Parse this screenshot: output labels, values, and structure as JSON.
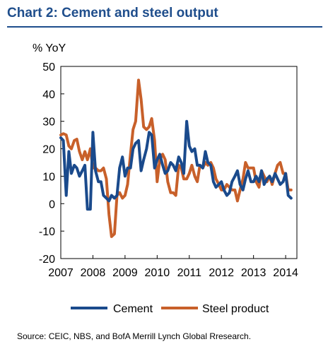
{
  "title": "Chart 2: Cement and steel output",
  "source": "Source: CEIC, NBS, and BofA Merrill Lynch Global Rresearch.",
  "chart_data": {
    "type": "line",
    "ylabel": "% YoY",
    "xlabel": "",
    "xlim": [
      2007.0,
      2014.35
    ],
    "ylim": [
      -20,
      50
    ],
    "yticks": [
      -20,
      -10,
      0,
      10,
      20,
      30,
      40,
      50
    ],
    "xticks": [
      2007,
      2008,
      2009,
      2010,
      2011,
      2012,
      2013,
      2014
    ],
    "grid": false,
    "legend_position": "bottom",
    "colors": {
      "Cement": "#1a4a8c",
      "Steel product": "#c8602a"
    },
    "series": [
      {
        "name": "Cement",
        "x": [
          2007.0,
          2007.08,
          2007.17,
          2007.25,
          2007.33,
          2007.42,
          2007.5,
          2007.58,
          2007.67,
          2007.75,
          2007.83,
          2007.92,
          2008.0,
          2008.08,
          2008.17,
          2008.25,
          2008.33,
          2008.42,
          2008.5,
          2008.58,
          2008.67,
          2008.75,
          2008.83,
          2008.92,
          2009.0,
          2009.08,
          2009.17,
          2009.25,
          2009.33,
          2009.42,
          2009.5,
          2009.58,
          2009.67,
          2009.75,
          2009.83,
          2009.92,
          2010.0,
          2010.08,
          2010.17,
          2010.25,
          2010.33,
          2010.42,
          2010.5,
          2010.58,
          2010.67,
          2010.75,
          2010.83,
          2010.92,
          2011.0,
          2011.08,
          2011.17,
          2011.25,
          2011.33,
          2011.42,
          2011.5,
          2011.58,
          2011.67,
          2011.75,
          2011.83,
          2011.92,
          2012.0,
          2012.08,
          2012.17,
          2012.25,
          2012.33,
          2012.42,
          2012.5,
          2012.58,
          2012.67,
          2012.75,
          2012.83,
          2012.92,
          2013.0,
          2013.08,
          2013.17,
          2013.25,
          2013.33,
          2013.42,
          2013.5,
          2013.58,
          2013.67,
          2013.75,
          2013.83,
          2013.92,
          2014.0,
          2014.08,
          2014.17
        ],
        "values": [
          24,
          23,
          3,
          19,
          11,
          14,
          13,
          10,
          12,
          14,
          -2,
          -2,
          26,
          12,
          8,
          8,
          3,
          2,
          1,
          3,
          2,
          3,
          13,
          17,
          10,
          13,
          13,
          20,
          22,
          23,
          12,
          16,
          20,
          26,
          25,
          13,
          16,
          18,
          14,
          11,
          12,
          15,
          14,
          12,
          17,
          15,
          11,
          30,
          21,
          19,
          20,
          14,
          14,
          13,
          19,
          15,
          14,
          8,
          6,
          7,
          8,
          5,
          3,
          4,
          8,
          10,
          12,
          7,
          5,
          9,
          12,
          8,
          8,
          10,
          8,
          12,
          7,
          9,
          10,
          8,
          11,
          9,
          7,
          8,
          11,
          3,
          2
        ]
      },
      {
        "name": "Steel product",
        "x": [
          2007.0,
          2007.08,
          2007.17,
          2007.25,
          2007.33,
          2007.42,
          2007.5,
          2007.58,
          2007.67,
          2007.75,
          2007.83,
          2007.92,
          2008.0,
          2008.08,
          2008.17,
          2008.25,
          2008.33,
          2008.42,
          2008.5,
          2008.58,
          2008.67,
          2008.75,
          2008.83,
          2008.92,
          2009.0,
          2009.08,
          2009.17,
          2009.25,
          2009.33,
          2009.42,
          2009.5,
          2009.58,
          2009.67,
          2009.75,
          2009.83,
          2009.92,
          2010.0,
          2010.08,
          2010.17,
          2010.25,
          2010.33,
          2010.42,
          2010.5,
          2010.58,
          2010.67,
          2010.75,
          2010.83,
          2010.92,
          2011.0,
          2011.08,
          2011.17,
          2011.25,
          2011.33,
          2011.42,
          2011.5,
          2011.58,
          2011.67,
          2011.75,
          2011.83,
          2011.92,
          2012.0,
          2012.08,
          2012.17,
          2012.25,
          2012.33,
          2012.42,
          2012.5,
          2012.58,
          2012.67,
          2012.75,
          2012.83,
          2012.92,
          2013.0,
          2013.08,
          2013.17,
          2013.25,
          2013.33,
          2013.42,
          2013.5,
          2013.58,
          2013.67,
          2013.75,
          2013.83,
          2013.92,
          2014.0,
          2014.08,
          2014.17
        ],
        "values": [
          25,
          25.5,
          25,
          21,
          20,
          23,
          23.5,
          19,
          16,
          19,
          16,
          20,
          13,
          13,
          12,
          12,
          13,
          9,
          -4,
          -12,
          -11,
          3,
          4,
          2,
          3,
          7,
          18,
          27,
          30,
          45,
          38,
          28,
          27,
          28,
          31,
          23,
          8,
          16,
          18,
          16,
          8,
          4,
          4,
          3,
          14,
          13,
          9,
          9,
          11,
          14,
          10,
          8,
          14,
          13,
          15,
          14,
          15,
          13,
          9,
          7,
          5,
          5,
          7,
          6,
          5,
          5,
          1,
          5,
          9,
          15,
          13,
          13,
          13,
          8,
          6,
          12,
          10,
          8,
          10,
          7,
          11,
          14,
          15,
          11,
          11,
          5,
          5
        ]
      }
    ]
  }
}
